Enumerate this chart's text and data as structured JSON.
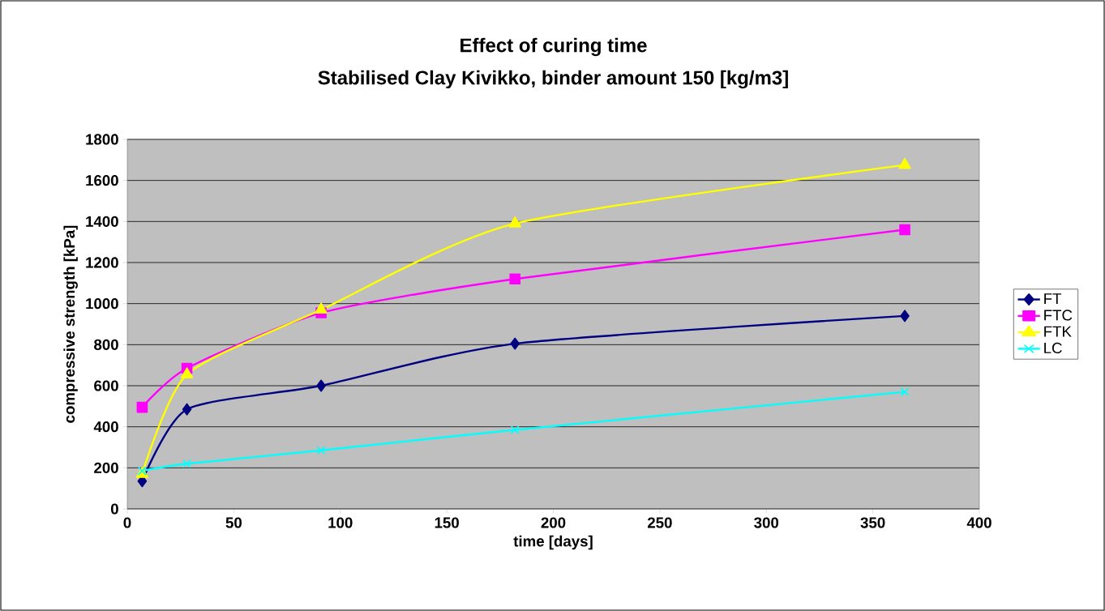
{
  "chart_data": {
    "type": "line",
    "title": "Effect of curing time",
    "subtitle": "Stabilised Clay Kivikko, binder amount 150 [kg/m3]",
    "xlabel": "time [days]",
    "ylabel": "compressive strength [kPa]",
    "x": [
      7,
      28,
      91,
      182,
      365
    ],
    "series": [
      {
        "name": "FT",
        "color": "#000080",
        "marker": "diamond",
        "values": [
          135,
          485,
          600,
          805,
          940
        ]
      },
      {
        "name": "FTC",
        "color": "#ff00ff",
        "marker": "square",
        "values": [
          495,
          685,
          955,
          1120,
          1360
        ]
      },
      {
        "name": "FTK",
        "color": "#ffff00",
        "marker": "triangle",
        "values": [
          170,
          655,
          970,
          1390,
          1675
        ]
      },
      {
        "name": "LC",
        "color": "#00ffff",
        "marker": "cross",
        "values": [
          185,
          220,
          285,
          385,
          570
        ]
      }
    ],
    "xlim": [
      0,
      400
    ],
    "xticks": [
      0,
      50,
      100,
      150,
      200,
      250,
      300,
      350,
      400
    ],
    "ylim": [
      0,
      1800
    ],
    "yticks": [
      0,
      200,
      400,
      600,
      800,
      1000,
      1200,
      1400,
      1600,
      1800
    ],
    "grid": "y",
    "legend": "right",
    "line_style": "solid"
  }
}
